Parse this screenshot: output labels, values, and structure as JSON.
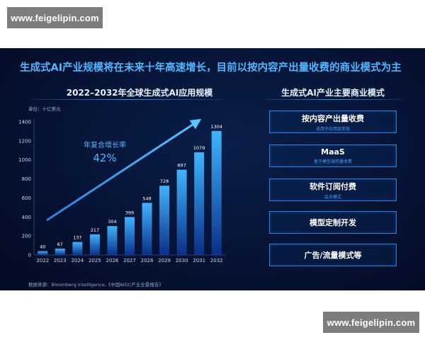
{
  "watermark": {
    "text": "www.feigelipin.com"
  },
  "headline": "生成式AI产业规模将在未来十年高速增长，目前以按内容产出量收费的商业模式为主",
  "chart_data": {
    "type": "bar",
    "title": "2022–2032年全球生成式AI应用规模",
    "unit_label": "单位：十亿美元",
    "categories": [
      "2022",
      "2023",
      "2024",
      "2025",
      "2026",
      "2027",
      "2028",
      "2029",
      "2030",
      "2031",
      "2032"
    ],
    "values": [
      40,
      67,
      137,
      217,
      304,
      399,
      548,
      728,
      897,
      1079,
      1304
    ],
    "ylim": [
      0,
      1400
    ],
    "yticks": [
      0,
      200,
      400,
      600,
      800,
      1000,
      1200,
      1400
    ],
    "grid": false,
    "annotation": {
      "label": "年复合增长率",
      "value": "42%"
    },
    "source": "数据来源：Bloomberg Intelligence,《中国AIGC产业全景报告》"
  },
  "business_models": {
    "title": "生成式AI产业主要商业模式",
    "items": [
      {
        "name": "按内容产出量收费",
        "sub": "适用于应用层变现"
      },
      {
        "name": "MaaS",
        "sub": "基于模型调用量收费"
      },
      {
        "name": "软件订阅付费",
        "sub": "会员模式"
      },
      {
        "name": "模型定制开发",
        "sub": ""
      },
      {
        "name": "广告/流量模式等",
        "sub": ""
      }
    ]
  },
  "colors": {
    "background": "#061335",
    "bar_top": "#3fb4ff",
    "bar_bottom": "#0a2f86",
    "accent": "#4fb6ff",
    "box_border": "#2f7fd9"
  }
}
